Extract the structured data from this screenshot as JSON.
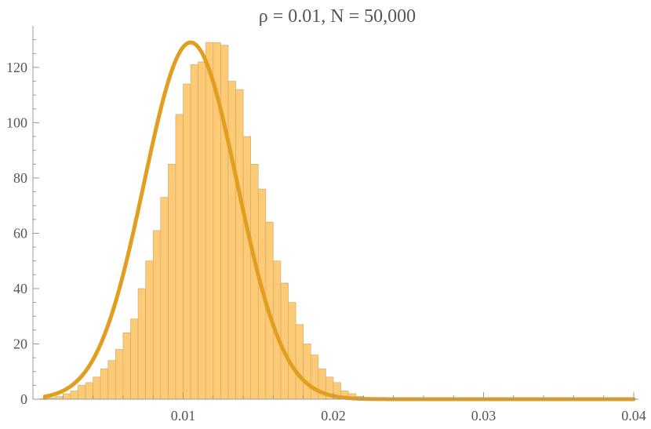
{
  "chart_data": {
    "type": "bar",
    "title": "ρ = 0.01, N = 50,000",
    "xlabel": "",
    "ylabel": "",
    "xlim": [
      0,
      0.04
    ],
    "ylim": [
      0,
      135
    ],
    "x_ticks": [
      0.01,
      0.02,
      0.03,
      0.04
    ],
    "x_tick_labels": [
      "0.01",
      "0.02",
      "0.03",
      "0.04"
    ],
    "y_ticks": [
      0,
      20,
      40,
      60,
      80,
      100,
      120
    ],
    "y_tick_labels": [
      "0",
      "20",
      "40",
      "60",
      "80",
      "100",
      "120"
    ],
    "grid": false,
    "colors": {
      "bars": "#fdca75",
      "bar_edge": "#c9a873",
      "curve": "#e29e1f",
      "text": "#555555",
      "axis": "#999999"
    },
    "histogram": {
      "bin_width": 0.0005,
      "bin_start": 0.0,
      "values": [
        0,
        0.2,
        0.5,
        1,
        2,
        3,
        5,
        6,
        8,
        11,
        14,
        18,
        24,
        29,
        40,
        50,
        61,
        73,
        85,
        103,
        114,
        121,
        122,
        129,
        129,
        128,
        115,
        112,
        95,
        85,
        76,
        64,
        50,
        42,
        35,
        27,
        20,
        16,
        11,
        8,
        6,
        3,
        2,
        1,
        0.5,
        0.3,
        0.2,
        0.1,
        0.1,
        0,
        0,
        0,
        0,
        0,
        0,
        0,
        0,
        0,
        0,
        0,
        0,
        0,
        0,
        0,
        0,
        0,
        0,
        0,
        0,
        0,
        0,
        0,
        0,
        0,
        0,
        0,
        0,
        0,
        0,
        0
      ]
    },
    "series": [
      {
        "type": "line",
        "mean": 0.0105,
        "sd": 0.0031,
        "peak": 129,
        "x_range": [
          0.0,
          0.04
        ]
      }
    ]
  }
}
